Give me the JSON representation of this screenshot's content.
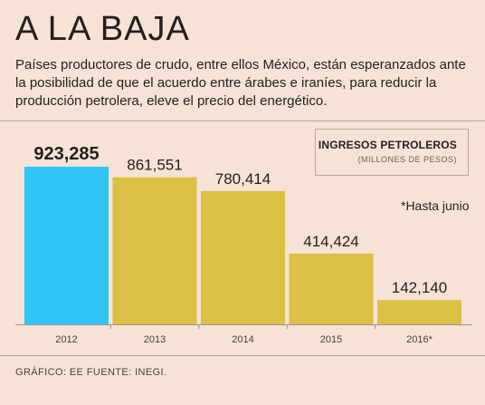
{
  "header": {
    "title": "A LA BAJA",
    "subtitle": "Países productores de crudo, entre ellos México, están esperanzados ante la posibilidad de que el acuerdo entre árabes e iraníes, para reducir la producción petrolera, eleve el precio del energético."
  },
  "legend": {
    "title": "INGRESOS PETROLEROS",
    "subtitle": "(MILLONES DE PESOS)"
  },
  "note": "*Hasta junio",
  "footer": "GRÁFICO: EE  FUENTE: INEGI.",
  "colors": {
    "highlight": "#30c5f4",
    "bar": "#dcbf45",
    "background": "#f6e3d6"
  },
  "chart_data": {
    "type": "bar",
    "title": "INGRESOS PETROLEROS",
    "subtitle": "(MILLONES DE PESOS)",
    "categories": [
      "2012",
      "2013",
      "2014",
      "2015",
      "2016*"
    ],
    "values": [
      923285,
      861551,
      780414,
      414424,
      142140
    ],
    "value_labels": [
      "923,285",
      "861,551",
      "780,414",
      "414,424",
      "142,140"
    ],
    "highlight_index": 0,
    "ylim": [
      0,
      923285
    ],
    "grid": false
  }
}
